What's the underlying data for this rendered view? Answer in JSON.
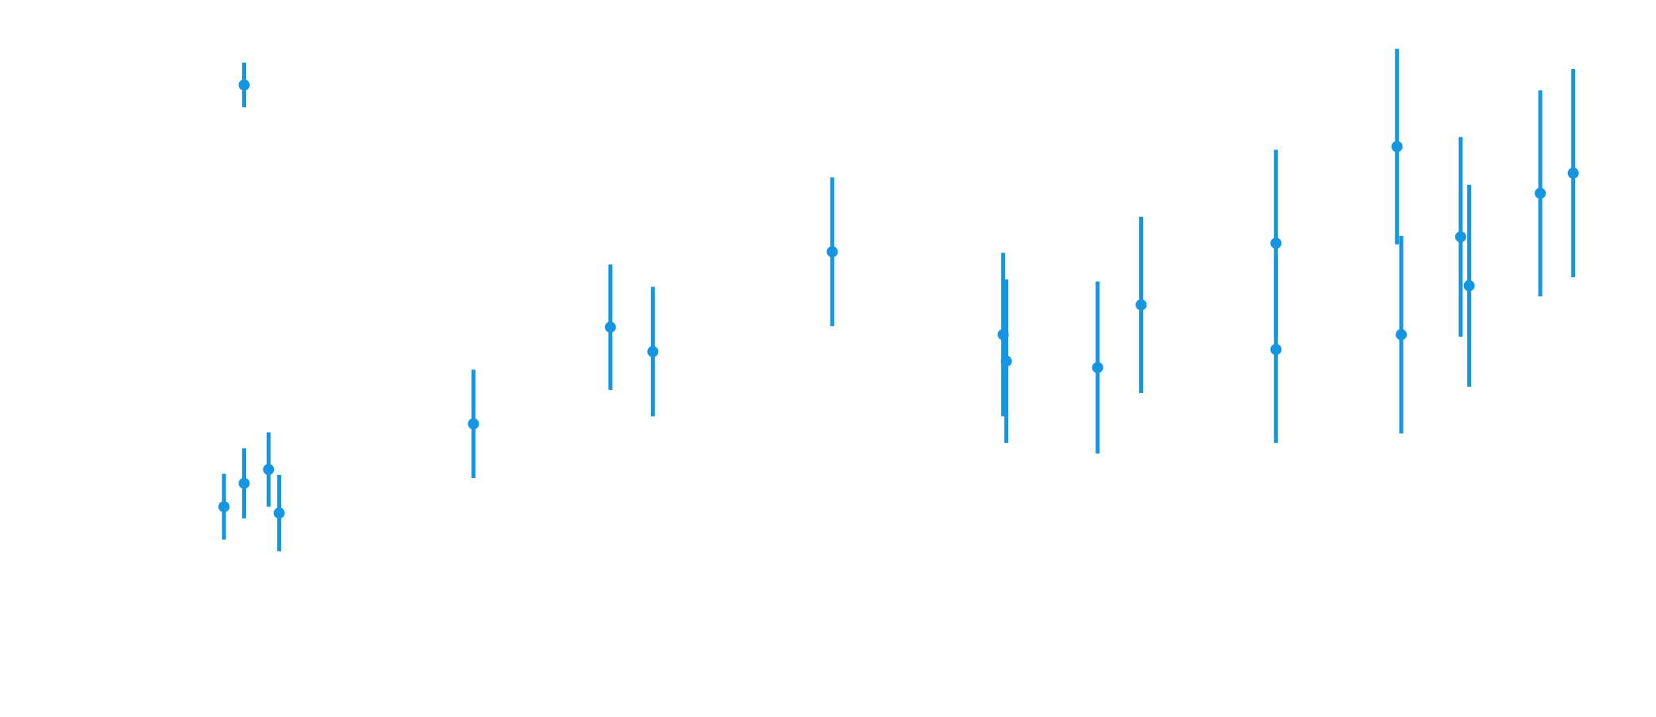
{
  "chart_data": {
    "type": "scatter",
    "xlim": [
      0,
      1560
    ],
    "ylim": [
      0,
      675
    ],
    "color": "#1496e3",
    "x": [
      230,
      211,
      230,
      253,
      263,
      446,
      575,
      615,
      784,
      945,
      948,
      1034,
      1075,
      1202,
      1202,
      1316,
      1320,
      1376,
      1384,
      1451,
      1482
    ],
    "values": [
      595,
      198,
      220,
      233,
      192,
      276,
      367,
      344,
      438,
      360,
      335,
      329,
      388,
      446,
      346,
      537,
      360,
      452,
      406,
      493,
      512
    ],
    "errors": [
      21,
      31,
      33,
      35,
      36,
      51,
      59,
      61,
      70,
      77,
      77,
      81,
      83,
      88,
      88,
      92,
      93,
      94,
      95,
      97,
      98
    ]
  }
}
